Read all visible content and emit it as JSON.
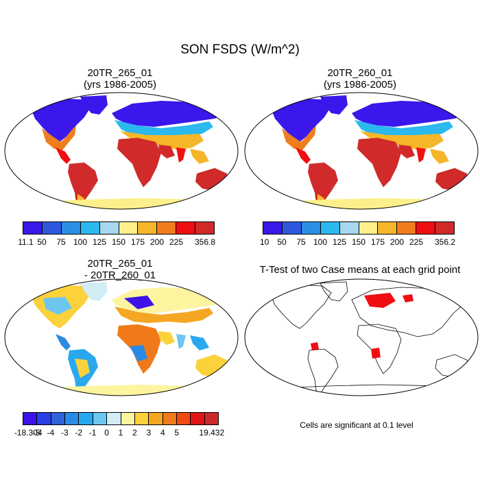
{
  "main_title": "SON FSDS (W/m^2)",
  "panels": {
    "top_left": {
      "title_line1": "20TR_265_01",
      "title_line2": "(yrs 1986-2005)"
    },
    "top_right": {
      "title_line1": "20TR_260_01",
      "title_line2": "(yrs 1986-2005)"
    },
    "bottom_left": {
      "title_line1": "20TR_265_01",
      "title_line2": "- 20TR_260_01"
    },
    "bottom_right": {
      "title": "T-Test of two Case means at each grid point",
      "note": "Cells are significant at 0.1 level"
    }
  },
  "colorbars": {
    "top_left": {
      "labels": [
        "11.1",
        "50",
        "75",
        "100",
        "125",
        "150",
        "175",
        "200",
        "225",
        "356.8"
      ],
      "colors": [
        "#3a17ea",
        "#2f58df",
        "#2b8fe6",
        "#2bb8ee",
        "#a8d6ef",
        "#fdf08c",
        "#f6b62a",
        "#f07d1c",
        "#ef0e12",
        "#d02a2a"
      ]
    },
    "top_right": {
      "labels": [
        "10",
        "50",
        "75",
        "100",
        "125",
        "150",
        "175",
        "200",
        "225",
        "356.2"
      ],
      "colors": [
        "#3a17ea",
        "#2f58df",
        "#2b8fe6",
        "#2bb8ee",
        "#a8d6ef",
        "#fdf08c",
        "#f6b62a",
        "#f07d1c",
        "#ef0e12",
        "#d02a2a"
      ]
    },
    "bottom_left": {
      "labels": [
        "-18.304",
        "-5",
        "-4",
        "-3",
        "-2",
        "-1",
        "0",
        "1",
        "2",
        "3",
        "4",
        "5",
        "19.432"
      ],
      "colors": [
        "#3d12e8",
        "#2a3ee5",
        "#3062d9",
        "#2b8ae4",
        "#2aa8ee",
        "#6dc6f0",
        "#d2ecf5",
        "#fdf4a0",
        "#fbd23c",
        "#f5a623",
        "#f07a1a",
        "#ef4a14",
        "#e11515",
        "#cc2a2a"
      ]
    }
  }
}
